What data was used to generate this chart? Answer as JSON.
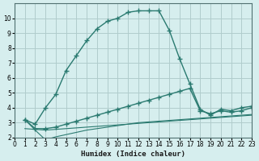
{
  "xlabel": "Humidex (Indice chaleur)",
  "background_color": "#d6eeee",
  "grid_color": "#b0cccc",
  "line_color": "#2a7a70",
  "xlim": [
    0,
    23
  ],
  "ylim": [
    2,
    11
  ],
  "yticks": [
    2,
    3,
    4,
    5,
    6,
    7,
    8,
    9,
    10
  ],
  "xticks": [
    0,
    1,
    2,
    3,
    4,
    5,
    6,
    7,
    8,
    9,
    10,
    11,
    12,
    13,
    14,
    15,
    16,
    17,
    18,
    19,
    20,
    21,
    22,
    23
  ],
  "line1_x": [
    1,
    2,
    3,
    4,
    5,
    6,
    7,
    8,
    9,
    10,
    11,
    12,
    13,
    14,
    15,
    16,
    17,
    18,
    19,
    20,
    21,
    22,
    23
  ],
  "line1_y": [
    3.2,
    2.9,
    4.0,
    4.9,
    6.5,
    7.5,
    8.5,
    9.3,
    9.8,
    10.0,
    10.4,
    10.5,
    10.5,
    10.5,
    9.2,
    7.3,
    5.6,
    3.9,
    3.5,
    3.9,
    3.8,
    4.0,
    4.1
  ],
  "line2_x": [
    1,
    2,
    3,
    4,
    5,
    6,
    7,
    8,
    9,
    10,
    11,
    12,
    13,
    14,
    15,
    16,
    17,
    18,
    19,
    20,
    21,
    22,
    23
  ],
  "line2_y": [
    3.2,
    2.6,
    2.6,
    2.7,
    2.9,
    3.1,
    3.3,
    3.5,
    3.7,
    3.9,
    4.1,
    4.3,
    4.5,
    4.7,
    4.9,
    5.1,
    5.3,
    3.8,
    3.6,
    3.8,
    3.7,
    3.8,
    4.0
  ],
  "line3_x": [
    1,
    2,
    3,
    4,
    5,
    6,
    7,
    8,
    9,
    10,
    11,
    12,
    13,
    14,
    15,
    16,
    17,
    18,
    19,
    20,
    21,
    22,
    23
  ],
  "line3_y": [
    3.2,
    2.5,
    1.85,
    2.05,
    2.2,
    2.35,
    2.5,
    2.6,
    2.7,
    2.8,
    2.9,
    3.0,
    3.05,
    3.1,
    3.15,
    3.2,
    3.25,
    3.3,
    3.35,
    3.4,
    3.45,
    3.5,
    3.55
  ],
  "line4_x": [
    1,
    2,
    3,
    4,
    5,
    6,
    7,
    8,
    9,
    10,
    11,
    12,
    13,
    14,
    15,
    16,
    17,
    18,
    19,
    20,
    21,
    22,
    23
  ],
  "line4_y": [
    2.6,
    2.55,
    2.5,
    2.55,
    2.6,
    2.65,
    2.7,
    2.75,
    2.8,
    2.85,
    2.9,
    2.95,
    3.0,
    3.05,
    3.1,
    3.15,
    3.2,
    3.25,
    3.3,
    3.35,
    3.4,
    3.45,
    3.5
  ]
}
